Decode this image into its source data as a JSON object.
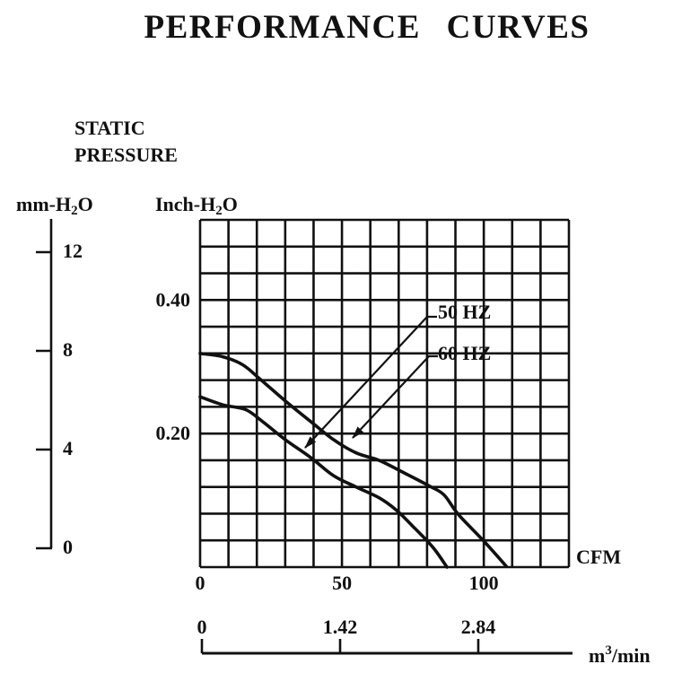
{
  "page": {
    "title": "PERFORMANCE CURVES"
  },
  "labels": {
    "static_pressure_line1": "STATIC",
    "static_pressure_line2": "PRESSURE",
    "mm_axis": {
      "pre": "mm-H",
      "sub": "2",
      "post": "O"
    },
    "inch_axis": {
      "pre": "Inch-H",
      "sub": "2",
      "post": "O"
    },
    "cfm": "CFM",
    "m3min": {
      "pre": "m",
      "sup": "3",
      "post": "/min"
    }
  },
  "chart_data": {
    "type": "line",
    "title": "PERFORMANCE CURVES",
    "subtitle": "STATIC PRESSURE",
    "xlabel": "CFM",
    "x2label": "m3/min",
    "ylabel": "Inch-H2O",
    "y2label": "mm-H2O",
    "xlim": [
      0,
      130
    ],
    "ylim": [
      0,
      0.52
    ],
    "grid": {
      "cols": 13,
      "rows": 13,
      "on": true
    },
    "x_ticks": [
      {
        "value": 0,
        "label": "0"
      },
      {
        "value": 50,
        "label": "50"
      },
      {
        "value": 100,
        "label": "100"
      }
    ],
    "y_ticks": [
      {
        "value": 0.4,
        "label": "0.40"
      },
      {
        "value": 0.2,
        "label": "0.20"
      }
    ],
    "mm_h2o_ticks": [
      {
        "value": 12,
        "label": "12"
      },
      {
        "value": 8,
        "label": "8"
      },
      {
        "value": 4,
        "label": "4"
      },
      {
        "value": 0,
        "label": "0"
      }
    ],
    "m3_min_ticks": [
      {
        "value": 0,
        "label": "0"
      },
      {
        "value": 1.42,
        "label": "1.42"
      },
      {
        "value": 2.84,
        "label": "2.84"
      }
    ],
    "series": [
      {
        "name": "60 HZ",
        "points": [
          [
            0,
            0.32
          ],
          [
            8,
            0.315
          ],
          [
            15,
            0.303
          ],
          [
            21,
            0.282
          ],
          [
            30,
            0.249
          ],
          [
            39,
            0.218
          ],
          [
            47,
            0.191
          ],
          [
            55,
            0.171
          ],
          [
            63,
            0.16
          ],
          [
            72,
            0.141
          ],
          [
            81,
            0.121
          ],
          [
            86,
            0.108
          ],
          [
            91,
            0.079
          ],
          [
            100,
            0.039
          ],
          [
            108,
            0.001
          ]
        ]
      },
      {
        "name": "50 HZ",
        "points": [
          [
            0,
            0.255
          ],
          [
            8,
            0.243
          ],
          [
            16,
            0.236
          ],
          [
            22,
            0.218
          ],
          [
            30,
            0.191
          ],
          [
            39,
            0.164
          ],
          [
            47,
            0.137
          ],
          [
            55,
            0.12
          ],
          [
            63,
            0.104
          ],
          [
            69,
            0.086
          ],
          [
            75,
            0.061
          ],
          [
            82,
            0.03
          ],
          [
            87,
            0.0
          ]
        ]
      }
    ],
    "annotations": [
      {
        "label": "50 HZ",
        "target_series": "50 HZ"
      },
      {
        "label": "60 HZ",
        "target_series": "60 HZ"
      }
    ],
    "legend_position": "inside-top-right-with-arrows"
  }
}
